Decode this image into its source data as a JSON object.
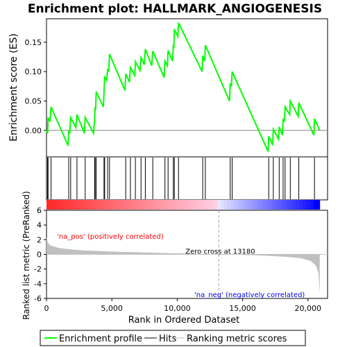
{
  "chart_data": {
    "type": "line",
    "title": "Enrichment plot: HALLMARK_ANGIOGENESIS",
    "top_panel": {
      "ylabel": "Enrichment score (ES)",
      "ylim": [
        -0.045,
        0.19
      ],
      "yticks": [
        0.0,
        0.05,
        0.1,
        0.15
      ],
      "ytick_labels": [
        "0.00",
        "0.05",
        "0.10",
        "0.15"
      ],
      "line_color": "#00ff00",
      "es_points": [
        [
          0,
          0.0
        ],
        [
          80,
          -0.005
        ],
        [
          120,
          0.022
        ],
        [
          260,
          0.015
        ],
        [
          350,
          0.04
        ],
        [
          1650,
          -0.026
        ],
        [
          1700,
          0.0
        ],
        [
          1780,
          -0.005
        ],
        [
          1850,
          0.022
        ],
        [
          2250,
          0.005
        ],
        [
          2330,
          0.027
        ],
        [
          2900,
          -0.005
        ],
        [
          2960,
          0.022
        ],
        [
          3600,
          -0.005
        ],
        [
          3680,
          0.018
        ],
        [
          3720,
          0.04
        ],
        [
          3760,
          0.035
        ],
        [
          3800,
          0.066
        ],
        [
          4350,
          0.04
        ],
        [
          4400,
          0.065
        ],
        [
          4450,
          0.092
        ],
        [
          4600,
          0.085
        ],
        [
          4680,
          0.105
        ],
        [
          4760,
          0.1
        ],
        [
          4820,
          0.13
        ],
        [
          6000,
          0.068
        ],
        [
          6060,
          0.096
        ],
        [
          6350,
          0.082
        ],
        [
          6420,
          0.107
        ],
        [
          6750,
          0.093
        ],
        [
          6800,
          0.117
        ],
        [
          7150,
          0.102
        ],
        [
          7230,
          0.124
        ],
        [
          7480,
          0.112
        ],
        [
          7560,
          0.138
        ],
        [
          8050,
          0.11
        ],
        [
          8130,
          0.135
        ],
        [
          9000,
          0.09
        ],
        [
          9060,
          0.118
        ],
        [
          9250,
          0.11
        ],
        [
          9300,
          0.136
        ],
        [
          9650,
          0.118
        ],
        [
          9700,
          0.146
        ],
        [
          9740,
          0.14
        ],
        [
          9780,
          0.172
        ],
        [
          10050,
          0.16
        ],
        [
          10100,
          0.183
        ],
        [
          11900,
          0.1
        ],
        [
          11950,
          0.127
        ],
        [
          12100,
          0.118
        ],
        [
          12150,
          0.145
        ],
        [
          14000,
          0.05
        ],
        [
          14050,
          0.08
        ],
        [
          14150,
          0.075
        ],
        [
          14200,
          0.1
        ],
        [
          16950,
          -0.036
        ],
        [
          17000,
          -0.01
        ],
        [
          17300,
          -0.025
        ],
        [
          17350,
          0.002
        ],
        [
          17750,
          -0.015
        ],
        [
          17800,
          0.006
        ],
        [
          18050,
          -0.008
        ],
        [
          18100,
          0.02
        ],
        [
          18200,
          0.015
        ],
        [
          18250,
          0.04
        ],
        [
          18600,
          0.027
        ],
        [
          18650,
          0.05
        ],
        [
          19250,
          0.024
        ],
        [
          19300,
          0.047
        ],
        [
          20450,
          -0.008
        ],
        [
          20500,
          0.02
        ],
        [
          20900,
          0.0
        ]
      ]
    },
    "hits": [
      80,
      120,
      350,
      1700,
      1850,
      2330,
      2960,
      3680,
      3720,
      3800,
      4400,
      4450,
      4680,
      4820,
      6060,
      6420,
      6800,
      7230,
      7560,
      8130,
      9060,
      9300,
      9700,
      9780,
      10100,
      11950,
      12150,
      14050,
      14200,
      17000,
      17350,
      17800,
      18100,
      18250,
      18650,
      19300,
      20500
    ],
    "ranking_panel": {
      "ylabel": "Ranked list metric (PreRanked)",
      "xlabel": "Rank in Ordered Dataset",
      "xlim": [
        0,
        21500
      ],
      "ylim": [
        -6,
        6
      ],
      "yticks": [
        -6,
        -4,
        -2,
        0,
        2,
        4,
        6
      ],
      "xticks": [
        0,
        5000,
        10000,
        15000,
        20000
      ],
      "xtick_labels": [
        "0",
        "5,000",
        "10,000",
        "15,000",
        "20,000"
      ],
      "metric_points": [
        [
          0,
          2.3
        ],
        [
          100,
          1.6
        ],
        [
          300,
          1.2
        ],
        [
          1000,
          0.85
        ],
        [
          2000,
          0.65
        ],
        [
          3000,
          0.52
        ],
        [
          5000,
          0.38
        ],
        [
          7000,
          0.28
        ],
        [
          9000,
          0.18
        ],
        [
          11000,
          0.1
        ],
        [
          13180,
          0.0
        ],
        [
          15000,
          -0.08
        ],
        [
          17000,
          -0.2
        ],
        [
          18500,
          -0.35
        ],
        [
          19500,
          -0.55
        ],
        [
          20200,
          -0.9
        ],
        [
          20600,
          -1.5
        ],
        [
          20800,
          -2.5
        ],
        [
          20900,
          -5.4
        ]
      ],
      "zero_cross_rank": 13180,
      "zero_cross_label": "Zero cross at 13180",
      "pos_label": "'na_pos' (positively correlated)",
      "neg_label": "'na_neg' (negatively correlated)",
      "pos_color": "#ff0000",
      "neg_color": "#0000ff"
    },
    "n_genes": 20900,
    "legend": [
      "Enrichment profile",
      "Hits",
      "Ranking metric scores"
    ]
  }
}
